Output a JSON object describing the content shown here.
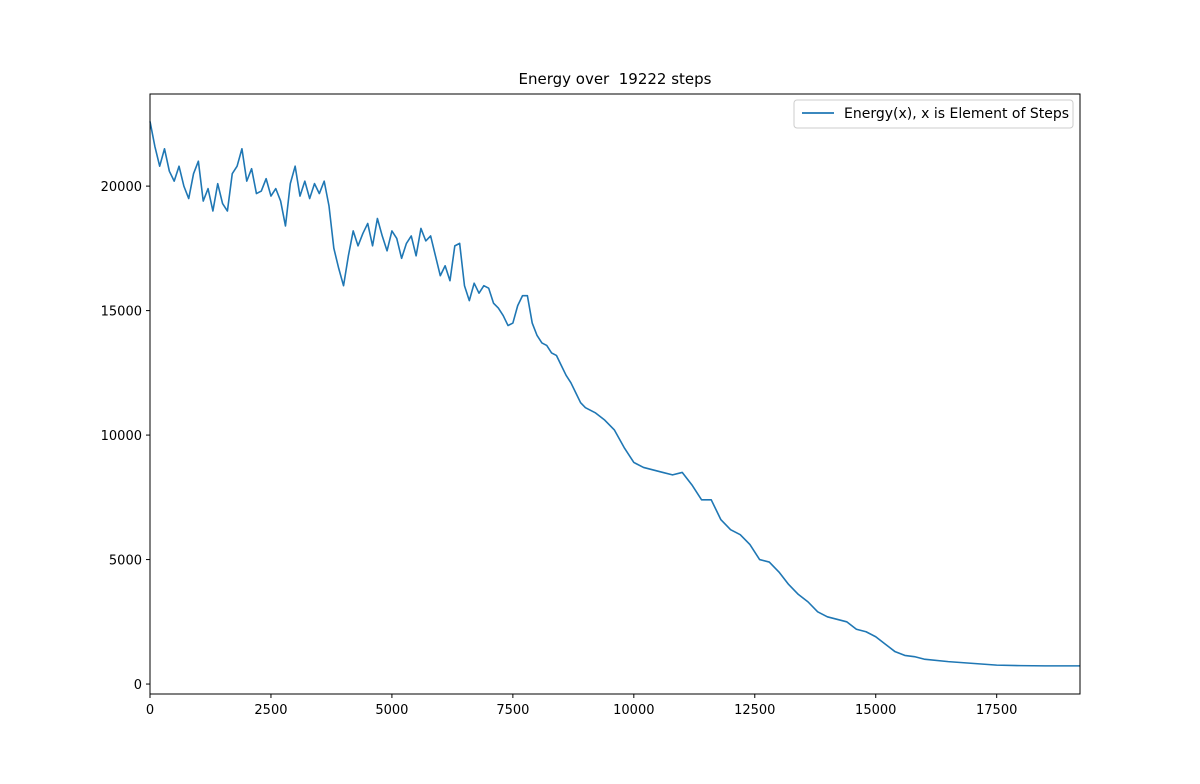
{
  "chart_data": {
    "type": "line",
    "title": "Energy over  19222 steps",
    "xlabel": "",
    "ylabel": "",
    "xlim": [
      0,
      19222
    ],
    "ylim": [
      -400,
      23700
    ],
    "xticks": [
      0,
      2500,
      5000,
      7500,
      10000,
      12500,
      15000,
      17500
    ],
    "xtick_labels": [
      "0",
      "2500",
      "5000",
      "7500",
      "10000",
      "12500",
      "15000",
      "17500"
    ],
    "yticks": [
      0,
      5000,
      10000,
      15000,
      20000
    ],
    "ytick_labels": [
      "0",
      "5000",
      "10000",
      "15000",
      "20000"
    ],
    "grid": false,
    "legend": {
      "placement": "top-right",
      "entries": [
        "Energy(x), x is Element of Steps"
      ]
    },
    "series": [
      {
        "name": "Energy(x), x is Element of Steps",
        "color": "#1f77b4",
        "x": [
          0,
          100,
          200,
          300,
          400,
          500,
          600,
          700,
          800,
          900,
          1000,
          1100,
          1200,
          1300,
          1400,
          1500,
          1600,
          1700,
          1800,
          1900,
          2000,
          2100,
          2200,
          2300,
          2400,
          2500,
          2600,
          2700,
          2800,
          2900,
          3000,
          3100,
          3200,
          3300,
          3400,
          3500,
          3600,
          3700,
          3800,
          3900,
          4000,
          4100,
          4200,
          4300,
          4400,
          4500,
          4600,
          4700,
          4800,
          4900,
          5000,
          5100,
          5200,
          5300,
          5400,
          5500,
          5600,
          5700,
          5800,
          5900,
          6000,
          6100,
          6200,
          6300,
          6400,
          6500,
          6600,
          6700,
          6800,
          6900,
          7000,
          7100,
          7200,
          7300,
          7400,
          7500,
          7600,
          7700,
          7800,
          7900,
          8000,
          8100,
          8200,
          8300,
          8400,
          8500,
          8600,
          8700,
          8800,
          8900,
          9000,
          9200,
          9400,
          9600,
          9800,
          10000,
          10200,
          10400,
          10600,
          10800,
          11000,
          11200,
          11400,
          11600,
          11800,
          12000,
          12200,
          12400,
          12600,
          12800,
          13000,
          13200,
          13400,
          13600,
          13800,
          14000,
          14200,
          14400,
          14600,
          14800,
          15000,
          15200,
          15400,
          15600,
          15800,
          16000,
          16500,
          17000,
          17500,
          18000,
          18500,
          19000,
          19222
        ],
        "y": [
          22600,
          21600,
          20800,
          21500,
          20600,
          20200,
          20800,
          20000,
          19500,
          20500,
          21000,
          19400,
          19900,
          19000,
          20100,
          19300,
          19000,
          20500,
          20800,
          21500,
          20200,
          20700,
          19700,
          19800,
          20300,
          19600,
          19900,
          19400,
          18400,
          20100,
          20800,
          19600,
          20200,
          19500,
          20100,
          19700,
          20200,
          19200,
          17500,
          16700,
          16000,
          17200,
          18200,
          17600,
          18100,
          18500,
          17600,
          18700,
          18000,
          17400,
          18200,
          17900,
          17100,
          17700,
          18000,
          17200,
          18300,
          17800,
          18000,
          17200,
          16400,
          16800,
          16200,
          17600,
          17700,
          16000,
          15400,
          16100,
          15700,
          16000,
          15900,
          15300,
          15100,
          14800,
          14400,
          14500,
          15200,
          15600,
          15600,
          14500,
          14000,
          13700,
          13600,
          13300,
          13200,
          12800,
          12400,
          12100,
          11700,
          11300,
          11100,
          10900,
          10600,
          10200,
          9500,
          8900,
          8700,
          8600,
          8500,
          8400,
          8500,
          8000,
          7400,
          7400,
          6600,
          6200,
          6000,
          5600,
          5000,
          4900,
          4500,
          4000,
          3600,
          3300,
          2900,
          2700,
          2600,
          2500,
          2200,
          2100,
          1900,
          1600,
          1300,
          1150,
          1100,
          1000,
          900,
          830,
          760,
          740,
          730,
          730,
          730
        ]
      }
    ]
  }
}
